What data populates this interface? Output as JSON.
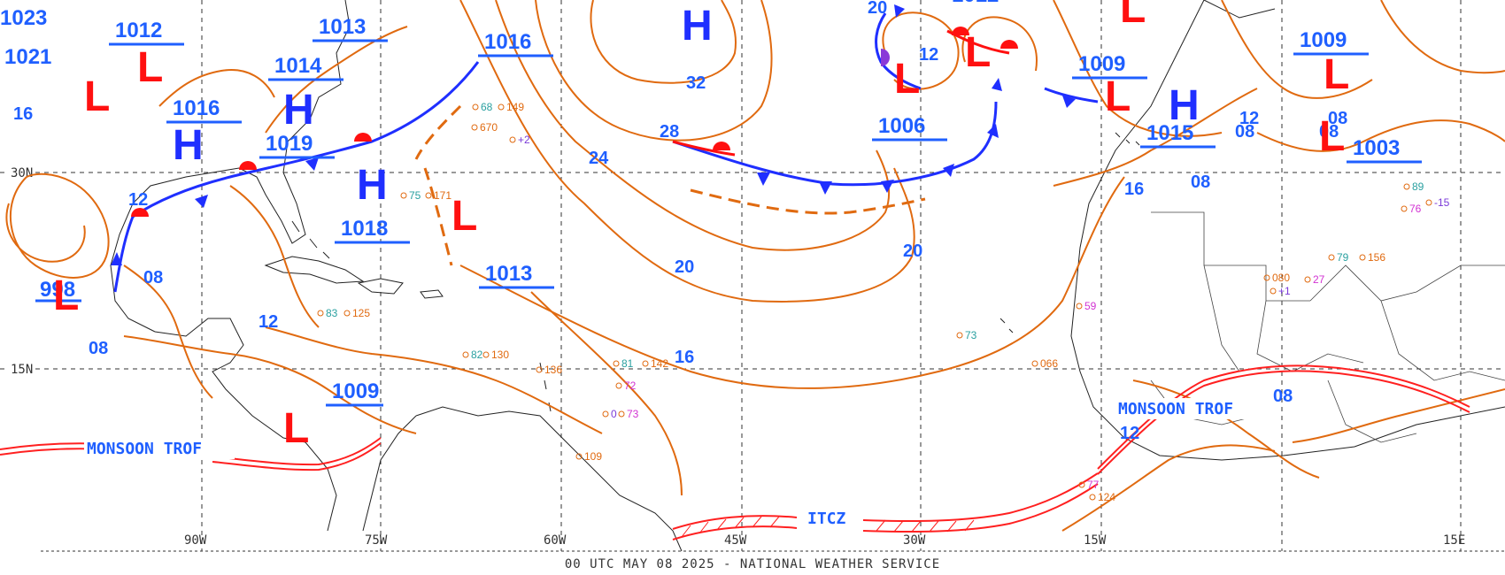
{
  "footer": "00 UTC MAY 08 2025 - NATIONAL WEATHER SERVICE",
  "grid": {
    "lat_labels": [
      "30N",
      "15N"
    ],
    "lon_labels": [
      "90W",
      "75W",
      "60W",
      "45W",
      "30W",
      "15W",
      "15E"
    ]
  },
  "isobar_labels": [
    "24",
    "28",
    "32",
    "20",
    "20",
    "16",
    "12",
    "08",
    "08",
    "12",
    "16",
    "12",
    "08",
    "08",
    "12",
    "08",
    "16",
    "20",
    "12",
    "08",
    "08"
  ],
  "pressure_centers": [
    {
      "type": "H",
      "label": "H",
      "value": "1016"
    },
    {
      "type": "H",
      "label": "H",
      "value": "1019"
    },
    {
      "type": "H",
      "label": "H",
      "value": "1014"
    },
    {
      "type": "H",
      "label": "H",
      "value": "1015"
    },
    {
      "type": "H",
      "label": "H",
      "value": ""
    },
    {
      "type": "L",
      "label": "L",
      "value": "1012"
    },
    {
      "type": "L",
      "label": "L",
      "value": "1006"
    },
    {
      "type": "L",
      "label": "L",
      "value": "1009"
    },
    {
      "type": "L",
      "label": "L",
      "value": "1009"
    },
    {
      "type": "L",
      "label": "L",
      "value": "1003"
    },
    {
      "type": "L",
      "label": "L",
      "value": "1013"
    },
    {
      "type": "L",
      "label": "L",
      "value": "1009"
    },
    {
      "type": "L",
      "label": "L",
      "value": "998"
    },
    {
      "type": "L",
      "label": "L",
      "value": ""
    }
  ],
  "extra_values": [
    "1023",
    "1021",
    "1016",
    "1013",
    "1012",
    "1016",
    "1018"
  ],
  "features": {
    "monsoon_west": "MONSOON TROF",
    "monsoon_east": "MONSOON TROF",
    "itcz": "ITCZ"
  },
  "station_samples": [
    {
      "t": "75",
      "c": "#2aa0a0"
    },
    {
      "t": "171",
      "c": "#e06a10"
    },
    {
      "t": "68",
      "c": "#2aa0a0"
    },
    {
      "t": "149",
      "c": "#e06a10"
    },
    {
      "t": "670",
      "c": "#e06a10"
    },
    {
      "t": "+2",
      "c": "#7a3ad8"
    },
    {
      "t": "81",
      "c": "#2aa0a0"
    },
    {
      "t": "142",
      "c": "#e06a10"
    },
    {
      "t": "72",
      "c": "#d233d2"
    },
    {
      "t": "83",
      "c": "#2aa0a0"
    },
    {
      "t": "125",
      "c": "#e06a10"
    },
    {
      "t": "59",
      "c": "#d233d2"
    },
    {
      "t": "73",
      "c": "#2aa0a0"
    },
    {
      "t": "066",
      "c": "#e06a10"
    },
    {
      "t": "89",
      "c": "#2aa0a0"
    },
    {
      "t": "-15",
      "c": "#7a3ad8"
    },
    {
      "t": "76",
      "c": "#d233d2"
    },
    {
      "t": "080",
      "c": "#e06a10"
    },
    {
      "t": "+1",
      "c": "#7a3ad8"
    },
    {
      "t": "27",
      "c": "#d233d2"
    },
    {
      "t": "79",
      "c": "#2aa0a0"
    },
    {
      "t": "156",
      "c": "#e06a10"
    },
    {
      "t": "124",
      "c": "#e06a10"
    },
    {
      "t": "77",
      "c": "#d233d2"
    },
    {
      "t": "82",
      "c": "#2aa0a0"
    },
    {
      "t": "130",
      "c": "#e06a10"
    },
    {
      "t": "0",
      "c": "#7a3ad8"
    },
    {
      "t": "73",
      "c": "#d233d2"
    },
    {
      "t": "136",
      "c": "#e06a10"
    },
    {
      "t": "109",
      "c": "#e06a10"
    }
  ],
  "colors": {
    "isobar": "#e06a10",
    "high": "#1f2fff",
    "low": "#ff1010",
    "label_blue": "#1f5fff",
    "coast": "#222222",
    "grid": "#333333",
    "cold_front": "#1f2fff",
    "warm_front": "#ff1010"
  }
}
